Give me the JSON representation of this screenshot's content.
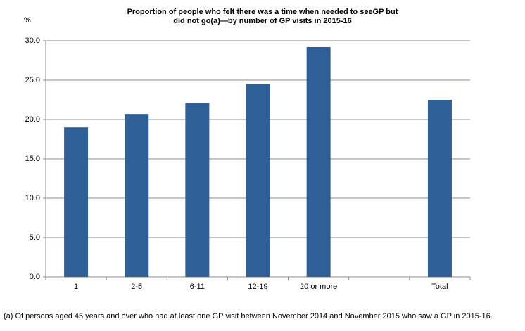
{
  "chart_data": {
    "type": "bar",
    "title": [
      "Proportion of people who felt there was a time when needed to seeGP but",
      "did not go(a)—by number of GP visits in 2015-16"
    ],
    "ylabel": "%",
    "note": "(a) Of persons aged 45 years and over who had at least one GP visit between November 2014 and November 2015 who saw a GP in 2015-16.",
    "categories": [
      "1",
      "2-5",
      "6-11",
      "12-19",
      "20 or more",
      null,
      "Total"
    ],
    "values": [
      19.0,
      20.7,
      22.1,
      24.5,
      29.2,
      null,
      22.5
    ],
    "color": "#2e5f97",
    "ylim": [
      0,
      30
    ],
    "yticks": [
      {
        "value": 0,
        "label": "0.0"
      },
      {
        "value": 5,
        "label": "5.0"
      },
      {
        "value": 10,
        "label": "10.0"
      },
      {
        "value": 15,
        "label": "15.0"
      },
      {
        "value": 20,
        "label": "20.0"
      },
      {
        "value": 25,
        "label": "25.0"
      },
      {
        "value": 30,
        "label": "30.0"
      }
    ],
    "grid": true
  }
}
